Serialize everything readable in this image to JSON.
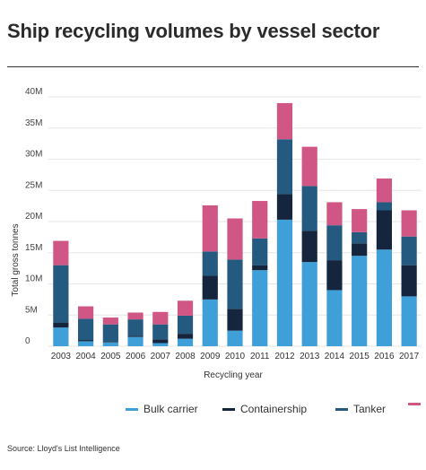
{
  "title": "Ship recycling volumes by vessel sector",
  "source": "Source: Lloyd's List Intelligence",
  "colors": {
    "bulk": "#3f9fd8",
    "container": "#15253d",
    "tanker": "#245a80",
    "other": "#d05685"
  },
  "chart_data": {
    "type": "bar",
    "stacked": true,
    "ylabel": "Total gross tonnes",
    "xlabel": "Recycling year",
    "ylim": [
      0,
      40
    ],
    "yticks": [
      "0",
      "5M",
      "10M",
      "15M",
      "20M",
      "25M",
      "30M",
      "35M",
      "40M"
    ],
    "grid": true,
    "legend_position": "bottom",
    "categories": [
      "2003",
      "2004",
      "2005",
      "2006",
      "2007",
      "2008",
      "2009",
      "2010",
      "2011",
      "2012",
      "2013",
      "2014",
      "2015",
      "2016",
      "2017"
    ],
    "series": [
      {
        "name": "Bulk carrier",
        "values": [
          3.0,
          0.8,
          0.6,
          1.5,
          0.5,
          1.2,
          7.5,
          2.5,
          12.2,
          20.3,
          13.5,
          9.0,
          14.5,
          15.5,
          8.0
        ]
      },
      {
        "name": "Containership",
        "values": [
          0.8,
          0.2,
          0.1,
          0.2,
          0.6,
          0.8,
          3.8,
          3.5,
          0.8,
          4.1,
          5.0,
          4.8,
          2.0,
          6.3,
          5.0
        ]
      },
      {
        "name": "Tanker",
        "values": [
          9.2,
          3.4,
          2.8,
          2.6,
          2.4,
          2.9,
          3.9,
          7.9,
          4.3,
          8.8,
          7.2,
          5.6,
          1.8,
          1.3,
          4.6
        ]
      },
      {
        "name": "",
        "values": [
          3.9,
          2.0,
          1.1,
          1.1,
          2.0,
          2.4,
          7.4,
          6.6,
          6.0,
          5.8,
          6.3,
          3.7,
          3.7,
          3.8,
          4.2
        ]
      }
    ]
  }
}
